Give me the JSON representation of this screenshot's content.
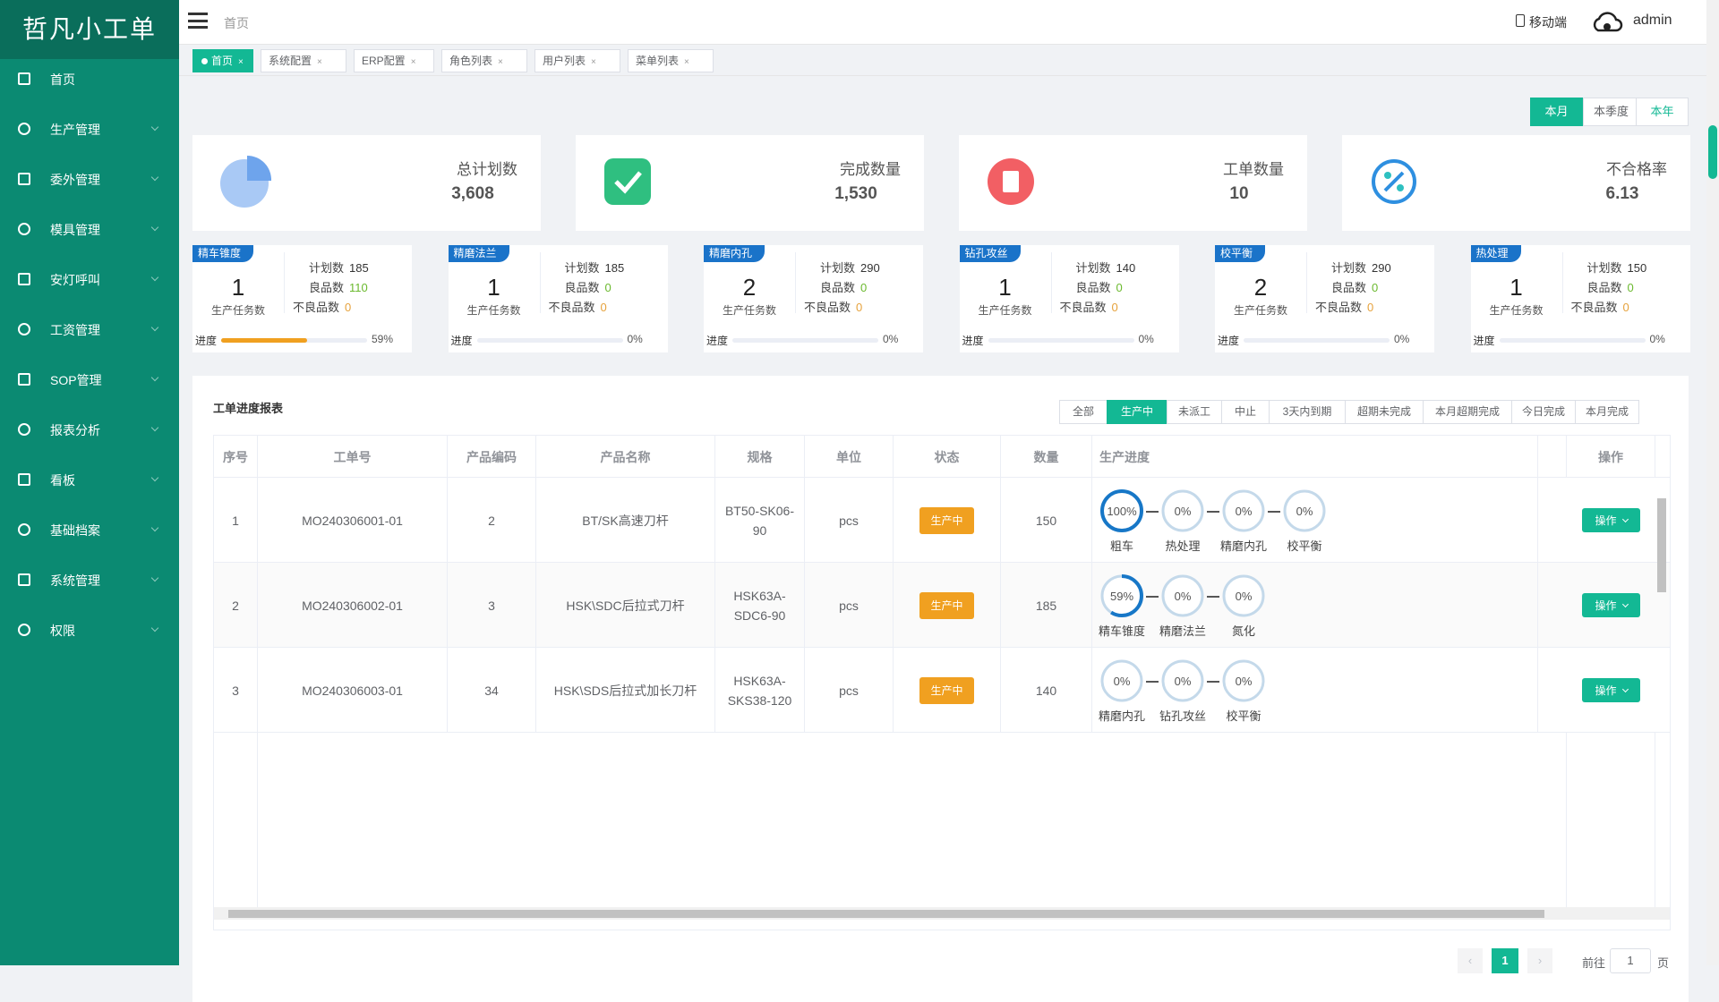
{
  "sidebar": {
    "logo": "哲凡小工单",
    "menu": [
      "首页",
      "生产管理",
      "委外管理",
      "模具管理",
      "安灯呼叫",
      "工资管理",
      "SOP管理",
      "报表分析",
      "看板",
      "基础档案",
      "系统管理",
      "权限"
    ]
  },
  "header": {
    "breadcrumb": "首页",
    "mobile": "移动端",
    "user": "admin"
  },
  "tabs": [
    "首页",
    "系统配置",
    "ERP配置",
    "角色列表",
    "用户列表",
    "菜单列表"
  ],
  "period_buttons": [
    "本月",
    "本季度",
    "本年"
  ],
  "stats": [
    {
      "label": "总计划数",
      "value": "3,608"
    },
    {
      "label": "完成数量",
      "value": "1,530"
    },
    {
      "label": "工单数量",
      "value": "10"
    },
    {
      "label": "不合格率",
      "value": "6.13"
    }
  ],
  "process_cards": [
    {
      "name": "精车锥度",
      "tasks": "1",
      "tasks_label": "生产任务数",
      "plan_label": "计划数",
      "plan": "185",
      "good_label": "良品数",
      "good": "110",
      "bad_label": "不良品数",
      "bad": "0",
      "progress_label": "进度",
      "progress": {
        "value": 59,
        "label": "59%"
      }
    },
    {
      "name": "精磨法兰",
      "tasks": "1",
      "tasks_label": "生产任务数",
      "plan_label": "计划数",
      "plan": "185",
      "good_label": "良品数",
      "good": "0",
      "bad_label": "不良品数",
      "bad": "0",
      "progress_label": "进度",
      "progress": {
        "value": 0,
        "label": "0%"
      }
    },
    {
      "name": "精磨内孔",
      "tasks": "2",
      "tasks_label": "生产任务数",
      "plan_label": "计划数",
      "plan": "290",
      "good_label": "良品数",
      "good": "0",
      "bad_label": "不良品数",
      "bad": "0",
      "progress_label": "进度",
      "progress": {
        "value": 0,
        "label": "0%"
      }
    },
    {
      "name": "钻孔攻丝",
      "tasks": "1",
      "tasks_label": "生产任务数",
      "plan_label": "计划数",
      "plan": "140",
      "good_label": "良品数",
      "good": "0",
      "bad_label": "不良品数",
      "bad": "0",
      "progress_label": "进度",
      "progress": {
        "value": 0,
        "label": "0%"
      }
    },
    {
      "name": "校平衡",
      "tasks": "2",
      "tasks_label": "生产任务数",
      "plan_label": "计划数",
      "plan": "290",
      "good_label": "良品数",
      "good": "0",
      "bad_label": "不良品数",
      "bad": "0",
      "progress_label": "进度",
      "progress": {
        "value": 0,
        "label": "0%"
      }
    },
    {
      "name": "热处理",
      "tasks": "1",
      "tasks_label": "生产任务数",
      "plan_label": "计划数",
      "plan": "150",
      "good_label": "良品数",
      "good": "0",
      "bad_label": "不良品数",
      "bad": "0",
      "progress_label": "进度",
      "progress": {
        "value": 0,
        "label": "0%"
      }
    }
  ],
  "report": {
    "title": "工单进度报表",
    "filters": [
      "全部",
      "生产中",
      "未派工",
      "中止",
      "3天内到期",
      "超期未完成",
      "本月超期完成",
      "今日完成",
      "本月完成"
    ],
    "columns": [
      "序号",
      "工单号",
      "产品编码",
      "产品名称",
      "规格",
      "单位",
      "状态",
      "数量",
      "生产进度",
      "操作"
    ],
    "rows": [
      {
        "cells": [
          "1",
          "MO240306001-01",
          "2",
          "BT/SK高速刀杆",
          "BT50-SK06-90",
          "pcs",
          "生产中",
          "150"
        ],
        "steps": [
          {
            "percent": {
              "value": 100,
              "label": "100%"
            },
            "name": "粗车"
          },
          {
            "percent": {
              "value": 0,
              "label": "0%"
            },
            "name": "热处理"
          },
          {
            "percent": {
              "value": 0,
              "label": "0%"
            },
            "name": "精磨内孔"
          },
          {
            "percent": {
              "value": 0,
              "label": "0%"
            },
            "name": "校平衡"
          }
        ],
        "action": "操作"
      },
      {
        "cells": [
          "2",
          "MO240306002-01",
          "3",
          "HSK\\SDC后拉式刀杆",
          "HSK63A-SDC6-90",
          "pcs",
          "生产中",
          "185"
        ],
        "steps": [
          {
            "percent": {
              "value": 59,
              "label": "59%"
            },
            "name": "精车锥度"
          },
          {
            "percent": {
              "value": 0,
              "label": "0%"
            },
            "name": "精磨法兰"
          },
          {
            "percent": {
              "value": 0,
              "label": "0%"
            },
            "name": "氮化"
          }
        ],
        "action": "操作"
      },
      {
        "cells": [
          "3",
          "MO240306003-01",
          "34",
          "HSK\\SDS后拉式加长刀杆",
          "HSK63A-SKS38-120",
          "pcs",
          "生产中",
          "140"
        ],
        "steps": [
          {
            "percent": {
              "value": 0,
              "label": "0%"
            },
            "name": "精磨内孔"
          },
          {
            "percent": {
              "value": 0,
              "label": "0%"
            },
            "name": "钻孔攻丝"
          },
          {
            "percent": {
              "value": 0,
              "label": "0%"
            },
            "name": "校平衡"
          }
        ],
        "action": "操作"
      }
    ]
  },
  "pagination": {
    "current": "1",
    "prefix": "前往",
    "page": "1",
    "suffix": "页"
  }
}
